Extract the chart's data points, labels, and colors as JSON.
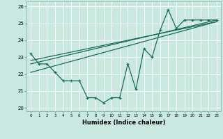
{
  "xlabel": "Humidex (Indice chaleur)",
  "xlim": [
    -0.5,
    23.5
  ],
  "ylim": [
    19.8,
    26.3
  ],
  "yticks": [
    20,
    21,
    22,
    23,
    24,
    25,
    26
  ],
  "xticks": [
    0,
    1,
    2,
    3,
    4,
    5,
    6,
    7,
    8,
    9,
    10,
    11,
    12,
    13,
    14,
    15,
    16,
    17,
    18,
    19,
    20,
    21,
    22,
    23
  ],
  "bg_color": "#c8e8e0",
  "grid_color": "#ffffff",
  "line_color": "#1a6b5a",
  "main_data_x": [
    0,
    1,
    2,
    3,
    4,
    5,
    6,
    7,
    8,
    9,
    10,
    11,
    12,
    13,
    14,
    15,
    16,
    17,
    18,
    19,
    20,
    21,
    22,
    23
  ],
  "main_data_y": [
    23.2,
    22.6,
    22.6,
    22.1,
    21.6,
    21.6,
    21.6,
    20.6,
    20.6,
    20.3,
    20.6,
    20.6,
    22.6,
    21.1,
    23.5,
    23.0,
    24.6,
    25.8,
    24.7,
    25.2,
    25.2,
    25.2,
    25.2,
    25.2
  ],
  "trend1_x": [
    0,
    23
  ],
  "trend1_y": [
    22.6,
    25.2
  ],
  "trend2_x": [
    0,
    23
  ],
  "trend2_y": [
    22.8,
    25.1
  ],
  "trend3_x": [
    0,
    23
  ],
  "trend3_y": [
    22.1,
    25.1
  ]
}
